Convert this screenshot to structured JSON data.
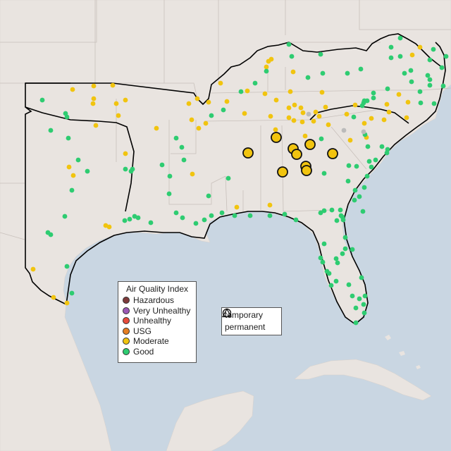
{
  "legend": {
    "title": "Air Quality Index",
    "categories": [
      {
        "label": "Hazardous",
        "color": "#7e3b3b"
      },
      {
        "label": "Very Unhealthy",
        "color": "#9b59b6"
      },
      {
        "label": "Unhealthy",
        "color": "#e74c3c"
      },
      {
        "label": "USG",
        "color": "#e67e22"
      },
      {
        "label": "Moderate",
        "color": "#f1c40f"
      },
      {
        "label": "Good",
        "color": "#2ecc71"
      }
    ]
  },
  "monitor_types": {
    "temporary": "temporary",
    "permanent": "permanent"
  },
  "colors": {
    "water": "#c9d6e2",
    "land": "#e9e4e0",
    "region_outline": "#000000",
    "moderate": "#f1c40f",
    "good": "#2ecc71",
    "no_data": "#bbbbbb"
  }
}
